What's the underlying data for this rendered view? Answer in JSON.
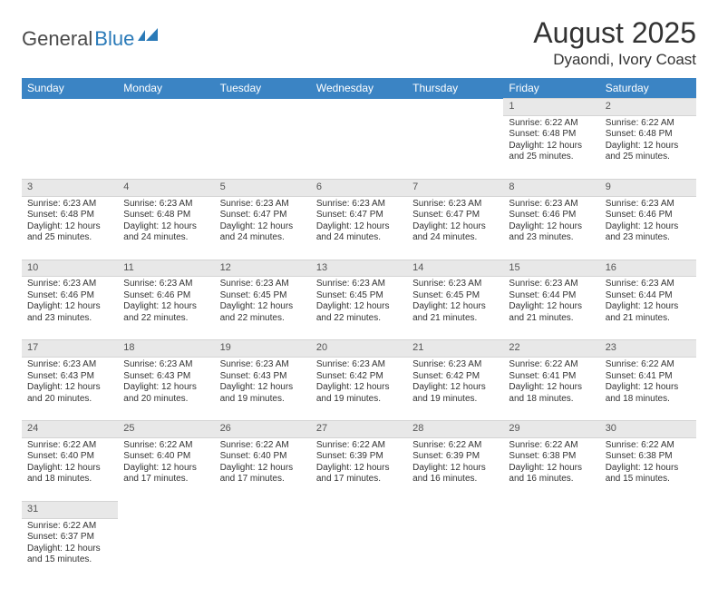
{
  "brand": {
    "name1": "General",
    "name2": "Blue"
  },
  "title": {
    "month": "August 2025",
    "location": "Dyaondi, Ivory Coast"
  },
  "colors": {
    "header_bg": "#3b84c4",
    "header_fg": "#ffffff",
    "daynum_bg": "#e8e8e8",
    "border": "#d4d4d4",
    "text": "#333333",
    "logo_gray": "#4a4a4a",
    "logo_blue": "#2a7ab8",
    "background": "#ffffff"
  },
  "typography": {
    "title_fontsize": 32,
    "location_fontsize": 17,
    "header_fontsize": 12,
    "daynum_fontsize": 11,
    "detail_fontsize": 10,
    "logo_fontsize": 22
  },
  "calendar": {
    "day_headers": [
      "Sunday",
      "Monday",
      "Tuesday",
      "Wednesday",
      "Thursday",
      "Friday",
      "Saturday"
    ],
    "first_day_index": 5,
    "days": [
      {
        "n": 1,
        "sunrise": "6:22 AM",
        "sunset": "6:48 PM",
        "daylight": "12 hours and 25 minutes."
      },
      {
        "n": 2,
        "sunrise": "6:22 AM",
        "sunset": "6:48 PM",
        "daylight": "12 hours and 25 minutes."
      },
      {
        "n": 3,
        "sunrise": "6:23 AM",
        "sunset": "6:48 PM",
        "daylight": "12 hours and 25 minutes."
      },
      {
        "n": 4,
        "sunrise": "6:23 AM",
        "sunset": "6:48 PM",
        "daylight": "12 hours and 24 minutes."
      },
      {
        "n": 5,
        "sunrise": "6:23 AM",
        "sunset": "6:47 PM",
        "daylight": "12 hours and 24 minutes."
      },
      {
        "n": 6,
        "sunrise": "6:23 AM",
        "sunset": "6:47 PM",
        "daylight": "12 hours and 24 minutes."
      },
      {
        "n": 7,
        "sunrise": "6:23 AM",
        "sunset": "6:47 PM",
        "daylight": "12 hours and 24 minutes."
      },
      {
        "n": 8,
        "sunrise": "6:23 AM",
        "sunset": "6:46 PM",
        "daylight": "12 hours and 23 minutes."
      },
      {
        "n": 9,
        "sunrise": "6:23 AM",
        "sunset": "6:46 PM",
        "daylight": "12 hours and 23 minutes."
      },
      {
        "n": 10,
        "sunrise": "6:23 AM",
        "sunset": "6:46 PM",
        "daylight": "12 hours and 23 minutes."
      },
      {
        "n": 11,
        "sunrise": "6:23 AM",
        "sunset": "6:46 PM",
        "daylight": "12 hours and 22 minutes."
      },
      {
        "n": 12,
        "sunrise": "6:23 AM",
        "sunset": "6:45 PM",
        "daylight": "12 hours and 22 minutes."
      },
      {
        "n": 13,
        "sunrise": "6:23 AM",
        "sunset": "6:45 PM",
        "daylight": "12 hours and 22 minutes."
      },
      {
        "n": 14,
        "sunrise": "6:23 AM",
        "sunset": "6:45 PM",
        "daylight": "12 hours and 21 minutes."
      },
      {
        "n": 15,
        "sunrise": "6:23 AM",
        "sunset": "6:44 PM",
        "daylight": "12 hours and 21 minutes."
      },
      {
        "n": 16,
        "sunrise": "6:23 AM",
        "sunset": "6:44 PM",
        "daylight": "12 hours and 21 minutes."
      },
      {
        "n": 17,
        "sunrise": "6:23 AM",
        "sunset": "6:43 PM",
        "daylight": "12 hours and 20 minutes."
      },
      {
        "n": 18,
        "sunrise": "6:23 AM",
        "sunset": "6:43 PM",
        "daylight": "12 hours and 20 minutes."
      },
      {
        "n": 19,
        "sunrise": "6:23 AM",
        "sunset": "6:43 PM",
        "daylight": "12 hours and 19 minutes."
      },
      {
        "n": 20,
        "sunrise": "6:23 AM",
        "sunset": "6:42 PM",
        "daylight": "12 hours and 19 minutes."
      },
      {
        "n": 21,
        "sunrise": "6:23 AM",
        "sunset": "6:42 PM",
        "daylight": "12 hours and 19 minutes."
      },
      {
        "n": 22,
        "sunrise": "6:22 AM",
        "sunset": "6:41 PM",
        "daylight": "12 hours and 18 minutes."
      },
      {
        "n": 23,
        "sunrise": "6:22 AM",
        "sunset": "6:41 PM",
        "daylight": "12 hours and 18 minutes."
      },
      {
        "n": 24,
        "sunrise": "6:22 AM",
        "sunset": "6:40 PM",
        "daylight": "12 hours and 18 minutes."
      },
      {
        "n": 25,
        "sunrise": "6:22 AM",
        "sunset": "6:40 PM",
        "daylight": "12 hours and 17 minutes."
      },
      {
        "n": 26,
        "sunrise": "6:22 AM",
        "sunset": "6:40 PM",
        "daylight": "12 hours and 17 minutes."
      },
      {
        "n": 27,
        "sunrise": "6:22 AM",
        "sunset": "6:39 PM",
        "daylight": "12 hours and 17 minutes."
      },
      {
        "n": 28,
        "sunrise": "6:22 AM",
        "sunset": "6:39 PM",
        "daylight": "12 hours and 16 minutes."
      },
      {
        "n": 29,
        "sunrise": "6:22 AM",
        "sunset": "6:38 PM",
        "daylight": "12 hours and 16 minutes."
      },
      {
        "n": 30,
        "sunrise": "6:22 AM",
        "sunset": "6:38 PM",
        "daylight": "12 hours and 15 minutes."
      },
      {
        "n": 31,
        "sunrise": "6:22 AM",
        "sunset": "6:37 PM",
        "daylight": "12 hours and 15 minutes."
      }
    ],
    "labels": {
      "sunrise": "Sunrise:",
      "sunset": "Sunset:",
      "daylight": "Daylight:"
    }
  }
}
